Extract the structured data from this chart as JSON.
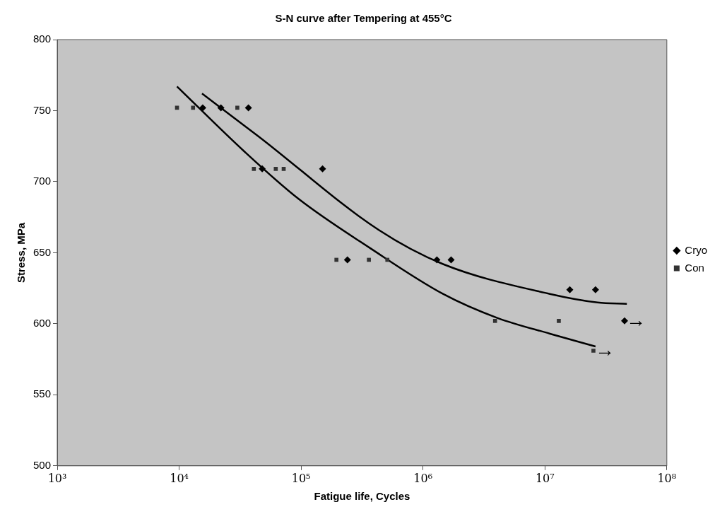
{
  "chart_data": {
    "type": "scatter",
    "title": "S-N curve after Tempering at 455°C",
    "xlabel": "Fatigue life, Cycles",
    "ylabel": "Stress, MPa",
    "log": "x",
    "xlim": [
      1000,
      100000000
    ],
    "xticks": [
      {
        "value": 1000,
        "label": "10³"
      },
      {
        "value": 10000,
        "label": "10⁴"
      },
      {
        "value": 100000,
        "label": "10⁵"
      },
      {
        "value": 1000000,
        "label": "10⁶"
      },
      {
        "value": 10000000,
        "label": "10⁷"
      },
      {
        "value": 100000000,
        "label": "10⁸"
      }
    ],
    "ylim": [
      500,
      800
    ],
    "yticks": [
      500,
      550,
      600,
      650,
      700,
      750,
      800
    ],
    "grid": false,
    "legend": "right",
    "series": [
      {
        "name": "Cryo",
        "type": "scatter",
        "marker": "diamond",
        "color": "#000000",
        "x": [
          15600,
          22000,
          37000,
          48000,
          150000,
          240000,
          1300000,
          1700000,
          16000000,
          26000000,
          45000000
        ],
        "values": [
          752,
          752,
          752,
          709,
          709,
          645,
          645,
          645,
          624,
          624,
          602
        ]
      },
      {
        "name": "Con",
        "type": "scatter",
        "marker": "square",
        "color": "#333333",
        "x": [
          9600,
          13000,
          30000,
          41000,
          62000,
          72000,
          195000,
          360000,
          510000,
          3900000,
          13000000,
          25000000
        ],
        "values": [
          752,
          752,
          752,
          709,
          709,
          709,
          645,
          645,
          645,
          602,
          602,
          581
        ]
      },
      {
        "type": "line",
        "marker": "none",
        "color": "#000000",
        "x": [
          15400,
          44600,
          434000,
          1460000,
          11000000,
          27000000,
          47000000
        ],
        "values": [
          762,
          732,
          666,
          642,
          621,
          615,
          614
        ]
      },
      {
        "type": "line",
        "marker": "none",
        "color": "#000000",
        "x": [
          9600,
          34500,
          95000,
          372000,
          1460000,
          4100000,
          11000000,
          26000000
        ],
        "values": [
          767,
          721,
          688,
          653,
          621,
          604,
          593,
          584
        ]
      }
    ],
    "annotations": [
      {
        "text": "→",
        "x": 45000000,
        "y": 602
      },
      {
        "text": "→",
        "x": 25000000,
        "y": 581
      }
    ]
  }
}
